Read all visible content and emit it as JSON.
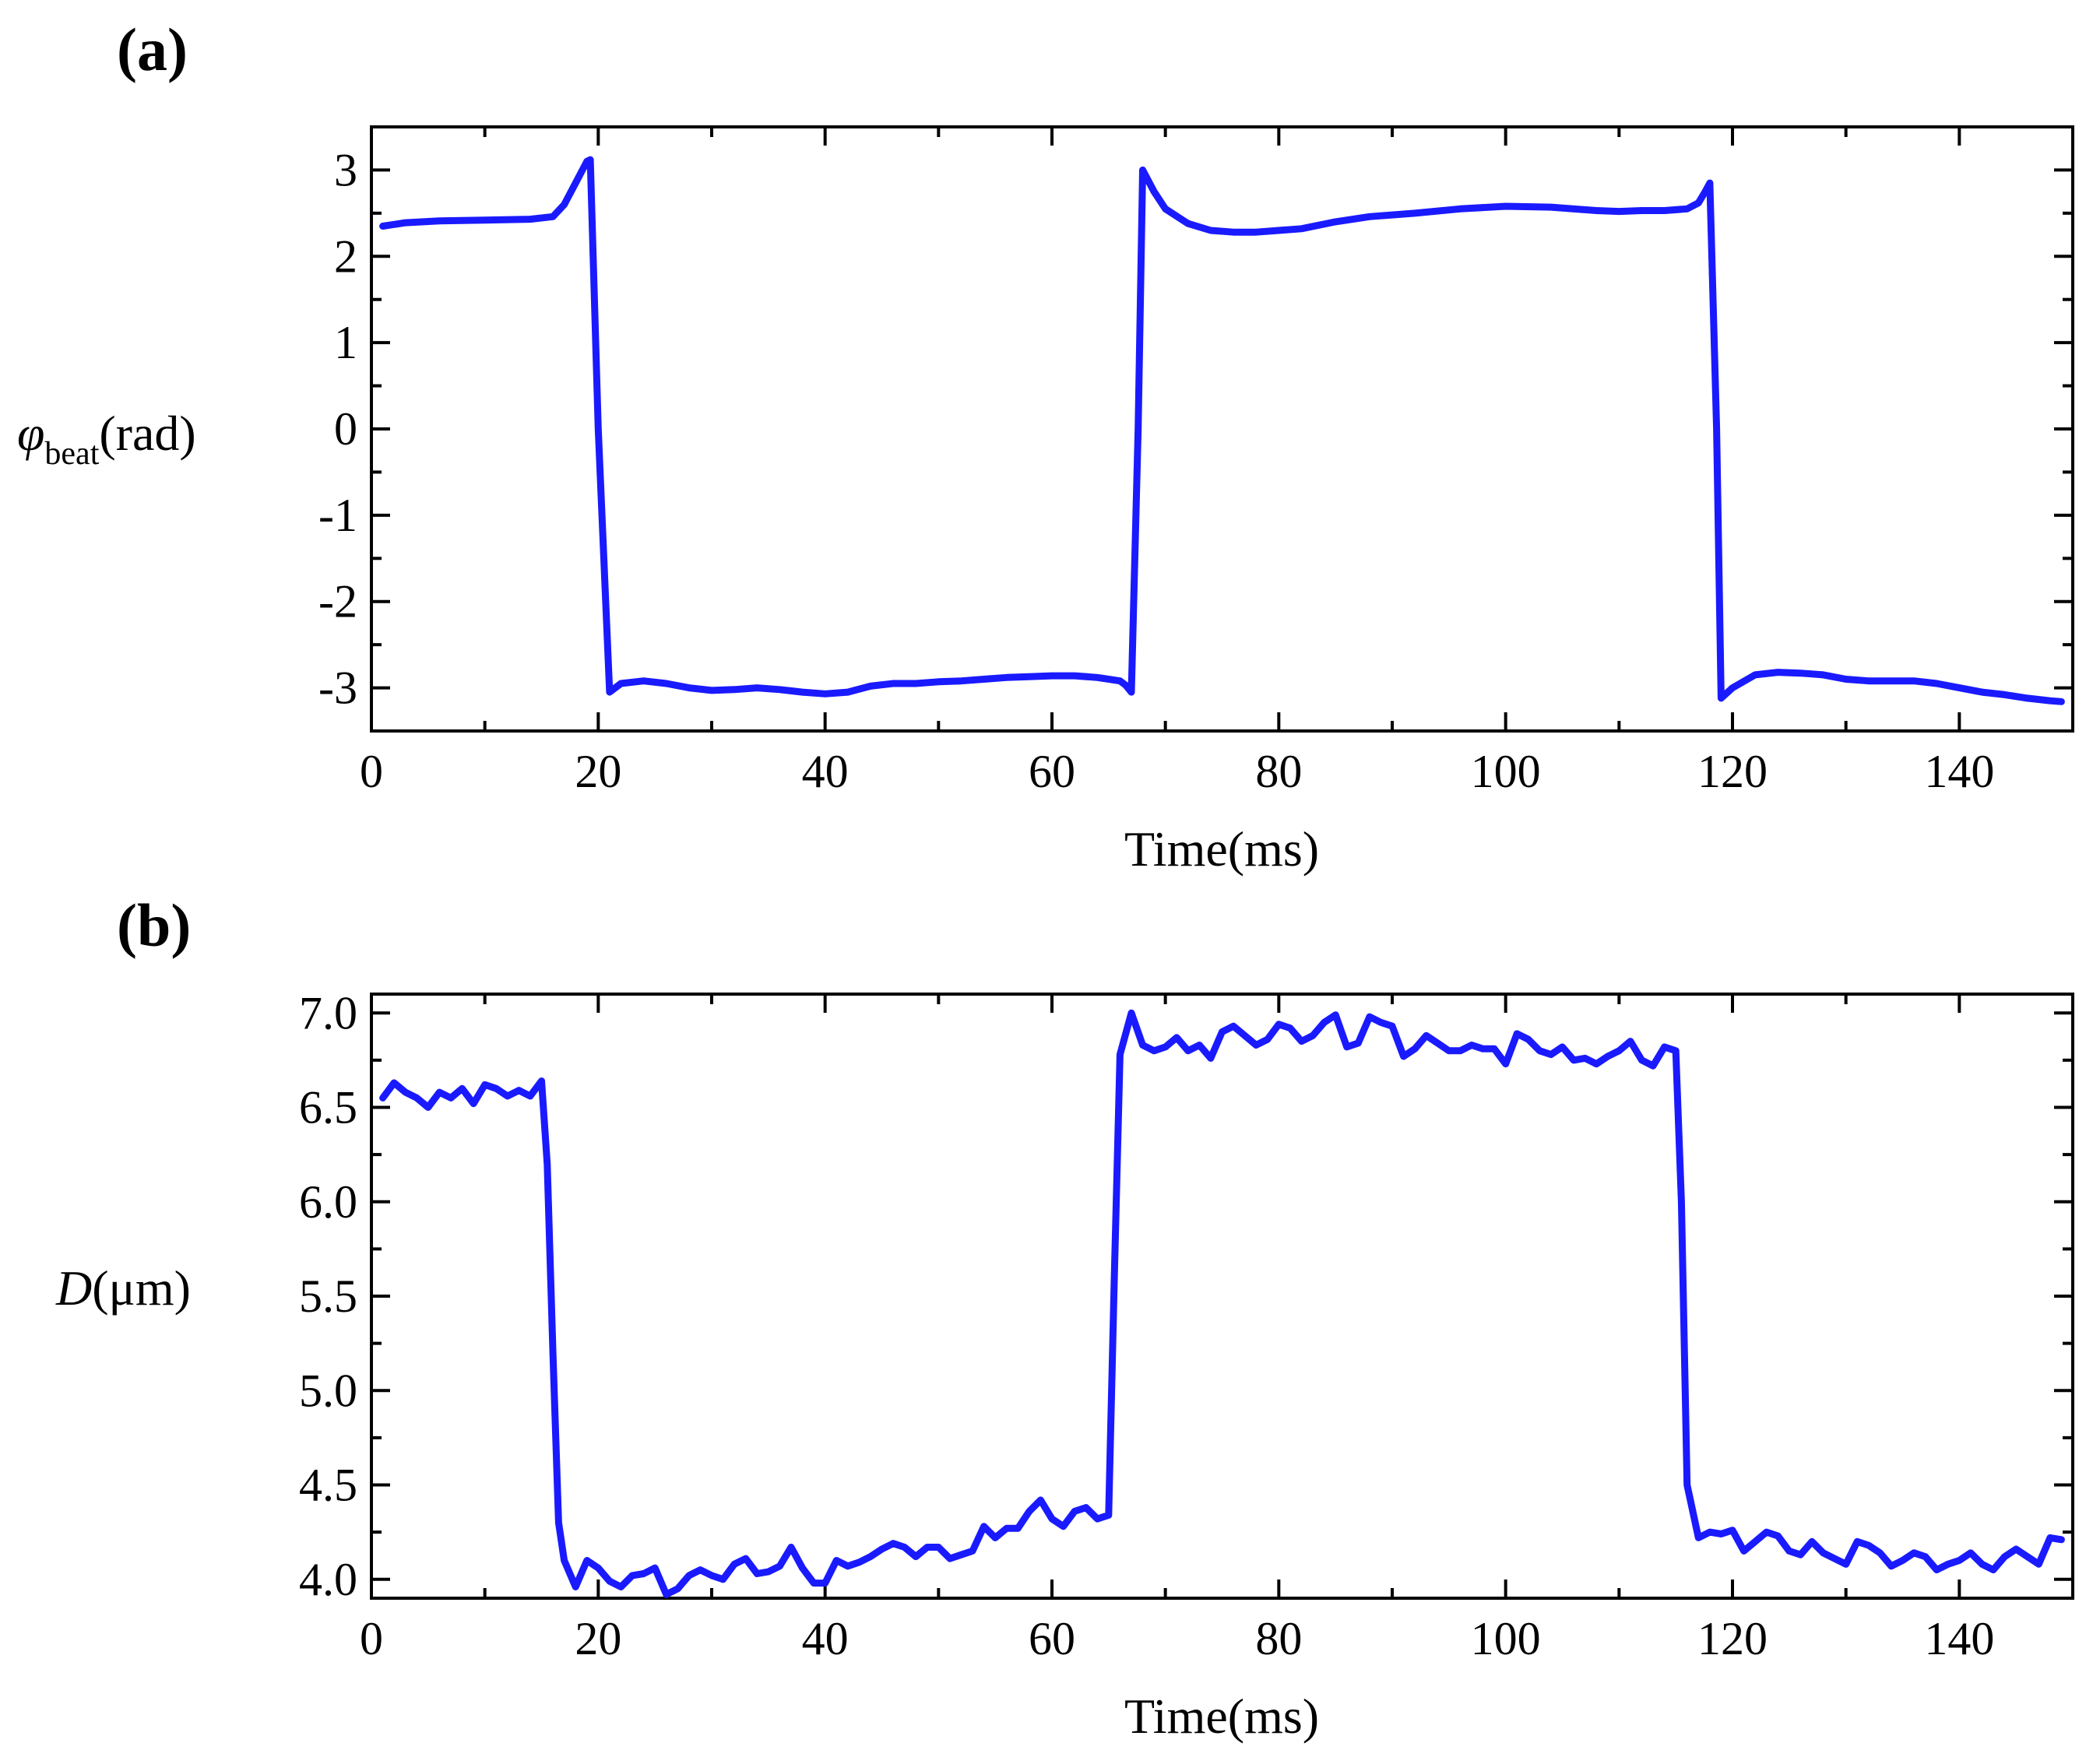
{
  "chart_data": [
    {
      "type": "line",
      "panel_label": "(a)",
      "xlabel": "Time(ms)",
      "ylabel_symbol": "φ",
      "ylabel_subscript": "beat",
      "ylabel_unit": "(rad)",
      "xlim": [
        0,
        150
      ],
      "ylim": [
        -3.5,
        3.5
      ],
      "xticks": [
        0,
        20,
        40,
        60,
        80,
        100,
        120,
        140
      ],
      "xtick_labels": [
        "0",
        "20",
        "40",
        "60",
        "80",
        "100",
        "120",
        "140"
      ],
      "yticks": [
        3,
        2,
        1,
        0,
        -1,
        -2,
        -3
      ],
      "ytick_labels": [
        "3",
        "2",
        "1",
        "0",
        "-1",
        "-2",
        "-3"
      ],
      "line_color": "#1a1aff",
      "series": [
        {
          "name": "phi_beat",
          "x": [
            1,
            3,
            6,
            10,
            14,
            16,
            17,
            18,
            19,
            19.3,
            20,
            21,
            22,
            24,
            26,
            28,
            30,
            32,
            34,
            36,
            38,
            40,
            42,
            44,
            46,
            48,
            50,
            52,
            54,
            56,
            58,
            60,
            62,
            64,
            66,
            66.5,
            67,
            67.6,
            68,
            69,
            70,
            72,
            74,
            76,
            78,
            80,
            82,
            85,
            88,
            92,
            96,
            100,
            104,
            108,
            110,
            112,
            114,
            116,
            117,
            117.6,
            118,
            118.6,
            119,
            120,
            122,
            124,
            126,
            128,
            130,
            132,
            134,
            136,
            138,
            140,
            142,
            144,
            146,
            148,
            149
          ],
          "y": [
            2.35,
            2.39,
            2.41,
            2.42,
            2.43,
            2.46,
            2.6,
            2.85,
            3.1,
            3.12,
            0.0,
            -3.05,
            -2.95,
            -2.92,
            -2.95,
            -3.0,
            -3.03,
            -3.02,
            -3.0,
            -3.02,
            -3.05,
            -3.07,
            -3.05,
            -2.98,
            -2.95,
            -2.95,
            -2.93,
            -2.92,
            -2.9,
            -2.88,
            -2.87,
            -2.86,
            -2.86,
            -2.88,
            -2.92,
            -2.97,
            -3.05,
            0.0,
            3.0,
            2.75,
            2.55,
            2.38,
            2.3,
            2.28,
            2.28,
            2.3,
            2.32,
            2.4,
            2.46,
            2.5,
            2.55,
            2.58,
            2.57,
            2.53,
            2.52,
            2.53,
            2.53,
            2.55,
            2.62,
            2.75,
            2.85,
            0.0,
            -3.12,
            -3.0,
            -2.85,
            -2.82,
            -2.83,
            -2.85,
            -2.9,
            -2.92,
            -2.92,
            -2.92,
            -2.95,
            -3.0,
            -3.05,
            -3.08,
            -3.12,
            -3.15,
            -3.16
          ]
        }
      ]
    },
    {
      "type": "line",
      "panel_label": "(b)",
      "xlabel": "Time(ms)",
      "ylabel_symbol": "D",
      "ylabel_unit": "(μm)",
      "xlim": [
        0,
        150
      ],
      "ylim": [
        3.9,
        7.1
      ],
      "xticks": [
        0,
        20,
        40,
        60,
        80,
        100,
        120,
        140
      ],
      "xtick_labels": [
        "0",
        "20",
        "40",
        "60",
        "80",
        "100",
        "120",
        "140"
      ],
      "yticks": [
        7.0,
        6.5,
        6.0,
        5.5,
        5.0,
        4.5,
        4.0
      ],
      "ytick_labels": [
        "7.0",
        "6.5",
        "6.0",
        "5.5",
        "5.0",
        "4.5",
        "4.0"
      ],
      "line_color": "#1a1aff",
      "series": [
        {
          "name": "D",
          "x": [
            1,
            2,
            3,
            4,
            5,
            6,
            7,
            8,
            9,
            10,
            11,
            12,
            13,
            14,
            15,
            15.5,
            16,
            16.5,
            17,
            18,
            19,
            20,
            21,
            22,
            23,
            24,
            25,
            26,
            27,
            28,
            29,
            30,
            31,
            32,
            33,
            34,
            35,
            36,
            37,
            38,
            39,
            40,
            41,
            42,
            43,
            44,
            45,
            46,
            47,
            48,
            49,
            50,
            51,
            52,
            53,
            54,
            55,
            56,
            57,
            58,
            59,
            60,
            61,
            62,
            63,
            64,
            65,
            65.5,
            66,
            67,
            68,
            69,
            70,
            71,
            72,
            73,
            74,
            75,
            76,
            77,
            78,
            79,
            80,
            81,
            82,
            83,
            84,
            85,
            86,
            87,
            88,
            89,
            90,
            91,
            92,
            93,
            94,
            95,
            96,
            97,
            98,
            99,
            100,
            101,
            102,
            103,
            104,
            105,
            106,
            107,
            108,
            109,
            110,
            111,
            112,
            113,
            114,
            115,
            115.5,
            116,
            117,
            118,
            119,
            120,
            121,
            122,
            123,
            124,
            125,
            126,
            127,
            128,
            129,
            130,
            131,
            132,
            133,
            134,
            135,
            136,
            137,
            138,
            139,
            140,
            141,
            142,
            143,
            144,
            145,
            146,
            147,
            148,
            149
          ],
          "y": [
            6.55,
            6.63,
            6.58,
            6.55,
            6.5,
            6.58,
            6.55,
            6.6,
            6.52,
            6.62,
            6.6,
            6.56,
            6.59,
            6.56,
            6.64,
            6.2,
            5.2,
            4.3,
            4.1,
            3.96,
            4.1,
            4.06,
            3.99,
            3.96,
            4.02,
            4.03,
            4.06,
            3.92,
            3.95,
            4.02,
            4.05,
            4.02,
            4.0,
            4.08,
            4.11,
            4.03,
            4.04,
            4.07,
            4.17,
            4.06,
            3.98,
            3.98,
            4.1,
            4.07,
            4.09,
            4.12,
            4.16,
            4.19,
            4.17,
            4.12,
            4.17,
            4.17,
            4.11,
            4.13,
            4.15,
            4.28,
            4.22,
            4.27,
            4.27,
            4.36,
            4.42,
            4.32,
            4.28,
            4.36,
            4.38,
            4.32,
            4.34,
            5.6,
            6.78,
            7.0,
            6.83,
            6.8,
            6.82,
            6.87,
            6.8,
            6.83,
            6.76,
            6.9,
            6.93,
            6.88,
            6.83,
            6.86,
            6.94,
            6.92,
            6.85,
            6.88,
            6.95,
            6.99,
            6.82,
            6.84,
            6.98,
            6.95,
            6.93,
            6.77,
            6.81,
            6.88,
            6.84,
            6.8,
            6.8,
            6.83,
            6.81,
            6.81,
            6.73,
            6.89,
            6.86,
            6.8,
            6.78,
            6.82,
            6.75,
            6.76,
            6.73,
            6.77,
            6.8,
            6.85,
            6.75,
            6.72,
            6.82,
            6.8,
            6.0,
            4.5,
            4.22,
            4.25,
            4.24,
            4.26,
            4.15,
            4.2,
            4.25,
            4.23,
            4.15,
            4.13,
            4.2,
            4.14,
            4.11,
            4.08,
            4.2,
            4.18,
            4.14,
            4.07,
            4.1,
            4.14,
            4.12,
            4.05,
            4.08,
            4.1,
            4.14,
            4.08,
            4.05,
            4.12,
            4.16,
            4.12,
            4.08,
            4.22,
            4.21
          ]
        }
      ]
    }
  ]
}
